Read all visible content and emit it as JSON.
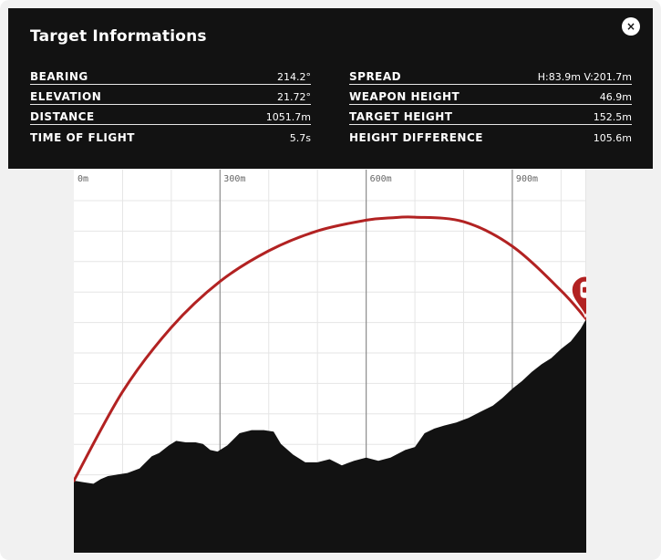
{
  "window": {
    "title": "Target Informations",
    "close_icon": "close-icon",
    "close_glyph": "×"
  },
  "stats": {
    "left": [
      {
        "label": "BEARING",
        "value": "214.2°"
      },
      {
        "label": "ELEVATION",
        "value": "21.72°"
      },
      {
        "label": "DISTANCE",
        "value": "1051.7m"
      },
      {
        "label": "TIME OF FLIGHT",
        "value": "5.7s"
      }
    ],
    "right": [
      {
        "label": "SPREAD",
        "value": "H:83.9m V:201.7m"
      },
      {
        "label": "WEAPON HEIGHT",
        "value": "46.9m"
      },
      {
        "label": "TARGET HEIGHT",
        "value": "152.5m"
      },
      {
        "label": "HEIGHT DIFFERENCE",
        "value": "105.6m"
      }
    ]
  },
  "chart_data": {
    "type": "area",
    "x_tick_labels": [
      "0m",
      "300m",
      "600m",
      "900m"
    ],
    "x_ticks": [
      0,
      300,
      600,
      900
    ],
    "xlim": [
      0,
      1051.7
    ],
    "ylim": [
      0,
      250
    ],
    "grid": true,
    "terrain": {
      "x": [
        0,
        20,
        40,
        55,
        70,
        90,
        110,
        135,
        160,
        175,
        195,
        210,
        230,
        250,
        265,
        280,
        295,
        315,
        340,
        365,
        390,
        410,
        425,
        450,
        475,
        500,
        525,
        550,
        575,
        600,
        625,
        650,
        680,
        700,
        720,
        740,
        760,
        785,
        810,
        835,
        860,
        880,
        900,
        920,
        940,
        960,
        980,
        1000,
        1020,
        1040,
        1051.7
      ],
      "y": [
        47,
        46,
        45,
        48,
        50,
        51,
        52,
        55,
        63,
        65,
        70,
        73,
        72,
        72,
        71,
        67,
        66,
        70,
        78,
        80,
        80,
        79,
        71,
        64,
        59,
        59,
        61,
        57,
        60,
        62,
        60,
        62,
        67,
        69,
        78,
        81,
        83,
        85,
        88,
        92,
        96,
        101,
        107,
        112,
        118,
        123,
        127,
        133,
        138,
        146,
        152.5
      ]
    },
    "trajectory": {
      "x": [
        0,
        100,
        200,
        300,
        400,
        500,
        600,
        650,
        700,
        800,
        900,
        1000,
        1051.7
      ],
      "y": [
        46.9,
        105,
        147,
        177,
        197,
        210,
        217,
        218.5,
        219,
        216,
        200,
        171,
        152.5
      ]
    },
    "colors": {
      "trajectory": "#b22222",
      "terrain": "#121212",
      "marker": "#b22222",
      "grid_minor": "#e5e5e5",
      "grid_major": "#8c8c8c"
    },
    "marker_icon": "target-marker-icon"
  }
}
